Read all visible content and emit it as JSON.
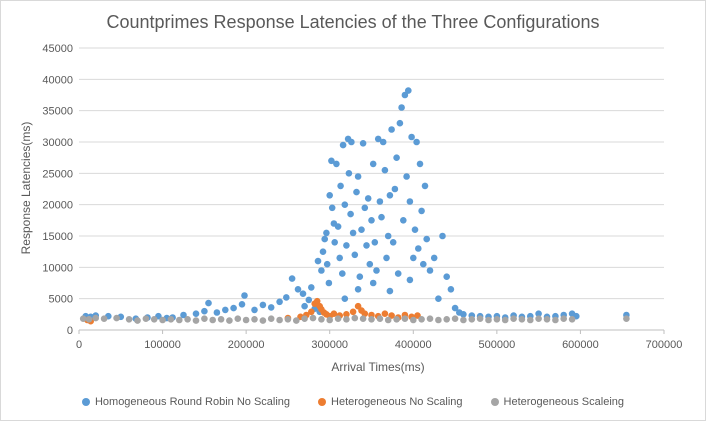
{
  "chart_data": {
    "type": "scatter",
    "title": "Countprimes Response Latencies of the Three Configurations",
    "xlabel": "Arrival Times(ms)",
    "ylabel": "Response Latencies(ms)",
    "xlim": [
      0,
      700000
    ],
    "ylim": [
      0,
      45000
    ],
    "x_ticks": [
      0,
      100000,
      200000,
      300000,
      400000,
      500000,
      600000,
      700000
    ],
    "y_ticks": [
      0,
      5000,
      10000,
      15000,
      20000,
      25000,
      30000,
      35000,
      40000,
      45000
    ],
    "grid": "horizontal",
    "legend_position": "bottom",
    "series": [
      {
        "name": "Homogeneous Round Robin No Scaling",
        "color": "#5b9bd5",
        "points": [
          [
            8000,
            2200
          ],
          [
            14000,
            2100
          ],
          [
            20000,
            2300
          ],
          [
            35000,
            2200
          ],
          [
            50000,
            2100
          ],
          [
            68000,
            1800
          ],
          [
            82000,
            2000
          ],
          [
            95000,
            2200
          ],
          [
            105000,
            1900
          ],
          [
            112000,
            2000
          ],
          [
            125000,
            2400
          ],
          [
            140000,
            2600
          ],
          [
            150000,
            3000
          ],
          [
            155000,
            4300
          ],
          [
            165000,
            2800
          ],
          [
            175000,
            3200
          ],
          [
            185000,
            3500
          ],
          [
            195000,
            4100
          ],
          [
            198000,
            5500
          ],
          [
            210000,
            3200
          ],
          [
            220000,
            4000
          ],
          [
            230000,
            3600
          ],
          [
            240000,
            4500
          ],
          [
            248000,
            5200
          ],
          [
            255000,
            8200
          ],
          [
            262000,
            6500
          ],
          [
            268000,
            5800
          ],
          [
            275000,
            4800
          ],
          [
            282000,
            3400
          ],
          [
            288000,
            2900
          ],
          [
            290000,
            9500
          ],
          [
            292000,
            12500
          ],
          [
            294000,
            14500
          ],
          [
            296000,
            15500
          ],
          [
            297000,
            10500
          ],
          [
            299000,
            7500
          ],
          [
            300000,
            21500
          ],
          [
            302000,
            27000
          ],
          [
            303000,
            19500
          ],
          [
            305000,
            17000
          ],
          [
            306000,
            14000
          ],
          [
            308000,
            26500
          ],
          [
            310000,
            16500
          ],
          [
            312000,
            11500
          ],
          [
            313000,
            23000
          ],
          [
            315000,
            9000
          ],
          [
            316000,
            29500
          ],
          [
            318000,
            20000
          ],
          [
            320000,
            13500
          ],
          [
            322000,
            30500
          ],
          [
            323000,
            25000
          ],
          [
            325000,
            18500
          ],
          [
            326000,
            30000
          ],
          [
            328000,
            15500
          ],
          [
            330000,
            12000
          ],
          [
            332000,
            22000
          ],
          [
            334000,
            24500
          ],
          [
            336000,
            8500
          ],
          [
            338000,
            16000
          ],
          [
            340000,
            29800
          ],
          [
            342000,
            19500
          ],
          [
            344000,
            13500
          ],
          [
            346000,
            21000
          ],
          [
            348000,
            10500
          ],
          [
            350000,
            17500
          ],
          [
            352000,
            26500
          ],
          [
            354000,
            14000
          ],
          [
            356000,
            9500
          ],
          [
            358000,
            30500
          ],
          [
            360000,
            20500
          ],
          [
            362000,
            18000
          ],
          [
            364000,
            30000
          ],
          [
            366000,
            25500
          ],
          [
            368000,
            11500
          ],
          [
            370000,
            15000
          ],
          [
            372000,
            21500
          ],
          [
            374000,
            32000
          ],
          [
            376000,
            14000
          ],
          [
            378000,
            22500
          ],
          [
            380000,
            27500
          ],
          [
            382000,
            9000
          ],
          [
            384000,
            33000
          ],
          [
            386000,
            35500
          ],
          [
            388000,
            17500
          ],
          [
            390000,
            37500
          ],
          [
            392000,
            24500
          ],
          [
            394000,
            38200
          ],
          [
            396000,
            20500
          ],
          [
            398000,
            30800
          ],
          [
            400000,
            11500
          ],
          [
            402000,
            16000
          ],
          [
            404000,
            30000
          ],
          [
            406000,
            13000
          ],
          [
            408000,
            26500
          ],
          [
            410000,
            19000
          ],
          [
            412000,
            10500
          ],
          [
            414000,
            23000
          ],
          [
            416000,
            14500
          ],
          [
            420000,
            9500
          ],
          [
            425000,
            11500
          ],
          [
            430000,
            5000
          ],
          [
            435000,
            15000
          ],
          [
            440000,
            8500
          ],
          [
            445000,
            6500
          ],
          [
            450000,
            3500
          ],
          [
            455000,
            2800
          ],
          [
            460000,
            2500
          ],
          [
            470000,
            2300
          ],
          [
            480000,
            2200
          ],
          [
            490000,
            2100
          ],
          [
            500000,
            2200
          ],
          [
            510000,
            2000
          ],
          [
            520000,
            2300
          ],
          [
            530000,
            2100
          ],
          [
            540000,
            2200
          ],
          [
            550000,
            2600
          ],
          [
            560000,
            2100
          ],
          [
            570000,
            2200
          ],
          [
            580000,
            2400
          ],
          [
            590000,
            2600
          ],
          [
            595000,
            2200
          ],
          [
            655000,
            2400
          ],
          [
            270000,
            3800
          ],
          [
            278000,
            6800
          ],
          [
            286000,
            11000
          ],
          [
            318000,
            5000
          ],
          [
            334000,
            6500
          ],
          [
            352000,
            7500
          ],
          [
            372000,
            6200
          ],
          [
            396000,
            8000
          ]
        ]
      },
      {
        "name": "Heterogeneous No Scaling",
        "color": "#ed7d31",
        "points": [
          [
            10000,
            1600
          ],
          [
            14000,
            1400
          ],
          [
            250000,
            1900
          ],
          [
            265000,
            2100
          ],
          [
            272000,
            2400
          ],
          [
            278000,
            2900
          ],
          [
            282000,
            4200
          ],
          [
            285000,
            4600
          ],
          [
            288000,
            3800
          ],
          [
            290000,
            3300
          ],
          [
            293000,
            2800
          ],
          [
            296000,
            2500
          ],
          [
            300000,
            2200
          ],
          [
            305000,
            2600
          ],
          [
            312000,
            2300
          ],
          [
            320000,
            2500
          ],
          [
            328000,
            2900
          ],
          [
            334000,
            3800
          ],
          [
            338000,
            3100
          ],
          [
            342000,
            2600
          ],
          [
            350000,
            2400
          ],
          [
            358000,
            2200
          ],
          [
            366000,
            2600
          ],
          [
            374000,
            2300
          ],
          [
            382000,
            2000
          ],
          [
            390000,
            2400
          ],
          [
            398000,
            2100
          ],
          [
            405000,
            2300
          ]
        ]
      },
      {
        "name": "Heterogeneous Scaleing",
        "color": "#a5a5a5",
        "points": [
          [
            5000,
            1800
          ],
          [
            12000,
            1700
          ],
          [
            20000,
            1900
          ],
          [
            30000,
            1800
          ],
          [
            45000,
            1900
          ],
          [
            60000,
            1700
          ],
          [
            70000,
            1500
          ],
          [
            80000,
            1800
          ],
          [
            90000,
            1700
          ],
          [
            100000,
            1600
          ],
          [
            110000,
            1700
          ],
          [
            120000,
            1600
          ],
          [
            130000,
            1700
          ],
          [
            140000,
            1500
          ],
          [
            150000,
            1800
          ],
          [
            160000,
            1600
          ],
          [
            170000,
            1700
          ],
          [
            180000,
            1500
          ],
          [
            190000,
            1800
          ],
          [
            200000,
            1600
          ],
          [
            210000,
            1700
          ],
          [
            220000,
            1500
          ],
          [
            230000,
            1800
          ],
          [
            240000,
            1600
          ],
          [
            250000,
            1700
          ],
          [
            260000,
            1500
          ],
          [
            270000,
            1800
          ],
          [
            280000,
            1900
          ],
          [
            290000,
            1700
          ],
          [
            300000,
            1600
          ],
          [
            310000,
            1800
          ],
          [
            320000,
            1700
          ],
          [
            330000,
            1900
          ],
          [
            340000,
            1800
          ],
          [
            350000,
            1700
          ],
          [
            360000,
            1800
          ],
          [
            370000,
            1600
          ],
          [
            380000,
            1700
          ],
          [
            390000,
            1800
          ],
          [
            400000,
            1600
          ],
          [
            410000,
            1700
          ],
          [
            420000,
            1800
          ],
          [
            430000,
            1600
          ],
          [
            440000,
            1700
          ],
          [
            450000,
            1800
          ],
          [
            460000,
            1600
          ],
          [
            470000,
            1700
          ],
          [
            480000,
            1800
          ],
          [
            490000,
            1600
          ],
          [
            500000,
            1700
          ],
          [
            510000,
            1600
          ],
          [
            520000,
            1800
          ],
          [
            530000,
            1700
          ],
          [
            540000,
            1600
          ],
          [
            550000,
            1800
          ],
          [
            560000,
            1700
          ],
          [
            570000,
            1600
          ],
          [
            580000,
            1800
          ],
          [
            590000,
            1700
          ],
          [
            655000,
            1800
          ]
        ]
      }
    ]
  }
}
